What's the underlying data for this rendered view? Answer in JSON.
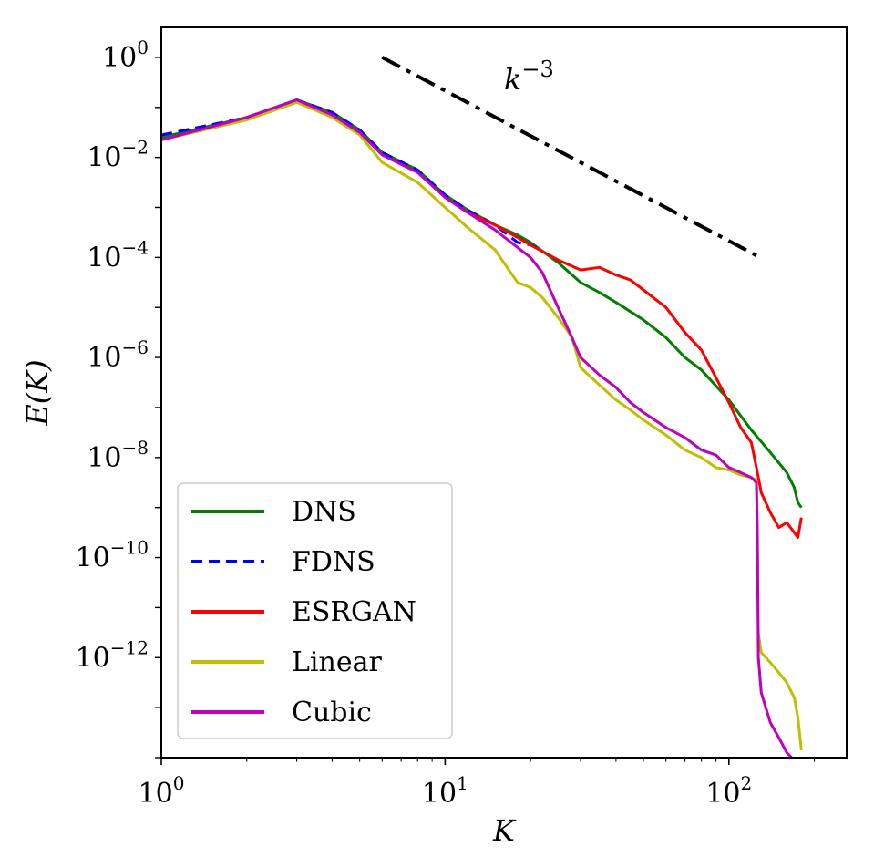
{
  "chart_data": {
    "type": "line",
    "title": "",
    "xlabel": "K",
    "ylabel": "E(K)",
    "xscale": "log",
    "yscale": "log",
    "xlim": [
      1,
      260
    ],
    "ylim_exponent": [
      -14,
      0.6
    ],
    "grid": false,
    "legend_position": "lower-left",
    "x_ticks": [
      {
        "base": "10",
        "exp": "0",
        "value": 1
      },
      {
        "base": "10",
        "exp": "1",
        "value": 10
      },
      {
        "base": "10",
        "exp": "2",
        "value": 100
      }
    ],
    "y_ticks": [
      {
        "base": "10",
        "exp": "0",
        "value_exp": 0
      },
      {
        "base": "10",
        "exp": "−2",
        "value_exp": -2
      },
      {
        "base": "10",
        "exp": "−4",
        "value_exp": -4
      },
      {
        "base": "10",
        "exp": "−6",
        "value_exp": -6
      },
      {
        "base": "10",
        "exp": "−8",
        "value_exp": -8
      },
      {
        "base": "10",
        "exp": "−10",
        "value_exp": -10
      },
      {
        "base": "10",
        "exp": "−12",
        "value_exp": -12
      }
    ],
    "annotation": {
      "base": "k",
      "exp": "−3",
      "line": {
        "x": [
          6,
          125
        ],
        "y_exp": [
          0,
          -3.96
        ]
      },
      "color": "#000000",
      "style": "dashdot"
    },
    "series": [
      {
        "name": "DNS",
        "color": "#008000",
        "style": "solid",
        "x": [
          1,
          2,
          3,
          4,
          5,
          6,
          8,
          10,
          12,
          15,
          18,
          20,
          25,
          30,
          35,
          40,
          50,
          60,
          70,
          80,
          100,
          120,
          140,
          160,
          170,
          175,
          180
        ],
        "y_exp": [
          -1.6,
          -1.2,
          -0.85,
          -1.1,
          -1.45,
          -1.9,
          -2.25,
          -2.75,
          -3.05,
          -3.35,
          -3.55,
          -3.7,
          -4.1,
          -4.5,
          -4.7,
          -4.9,
          -5.25,
          -5.6,
          -6.0,
          -6.25,
          -6.85,
          -7.45,
          -7.9,
          -8.3,
          -8.6,
          -8.9,
          -9.0
        ]
      },
      {
        "name": "FDNS",
        "color": "#0000ff",
        "style": "dashed",
        "x": [
          1,
          2,
          3,
          4,
          5,
          6,
          8,
          10,
          12,
          15,
          18,
          20,
          21
        ],
        "y_exp": [
          -1.55,
          -1.2,
          -0.85,
          -1.1,
          -1.45,
          -1.9,
          -2.25,
          -2.75,
          -3.05,
          -3.35,
          -3.7,
          -3.75,
          -3.8
        ]
      },
      {
        "name": "ESRGAN",
        "color": "#ff0000",
        "style": "solid",
        "x": [
          10,
          12,
          15,
          18,
          20,
          25,
          30,
          35,
          40,
          45,
          50,
          60,
          70,
          80,
          90,
          100,
          110,
          120,
          125,
          130,
          140,
          150,
          160,
          170,
          175,
          180
        ],
        "y_exp": [
          -2.8,
          -3.1,
          -3.35,
          -3.6,
          -3.75,
          -4.05,
          -4.25,
          -4.2,
          -4.35,
          -4.45,
          -4.65,
          -5.0,
          -5.5,
          -5.85,
          -6.4,
          -6.9,
          -7.4,
          -7.7,
          -8.2,
          -8.7,
          -9.1,
          -9.4,
          -9.3,
          -9.5,
          -9.6,
          -9.2
        ]
      },
      {
        "name": "Linear",
        "color": "#bfbf00",
        "style": "solid",
        "x": [
          1,
          2,
          3,
          4,
          5,
          6,
          8,
          10,
          12,
          15,
          18,
          20,
          22,
          25,
          28,
          30,
          35,
          40,
          45,
          50,
          60,
          70,
          80,
          90,
          100,
          110,
          120,
          125,
          126,
          127,
          130,
          140,
          150,
          160,
          170,
          175,
          180
        ],
        "y_exp": [
          -1.65,
          -1.25,
          -0.9,
          -1.2,
          -1.55,
          -2.1,
          -2.5,
          -3.0,
          -3.4,
          -3.85,
          -4.5,
          -4.6,
          -4.8,
          -5.2,
          -5.6,
          -6.2,
          -6.55,
          -6.85,
          -7.05,
          -7.25,
          -7.55,
          -7.85,
          -8.0,
          -8.2,
          -8.25,
          -8.35,
          -8.4,
          -8.45,
          -9.5,
          -11.5,
          -11.9,
          -12.1,
          -12.3,
          -12.5,
          -12.8,
          -13.2,
          -13.85
        ]
      },
      {
        "name": "Cubic",
        "color": "#bf00bf",
        "style": "solid",
        "x": [
          1,
          2,
          3,
          4,
          5,
          6,
          8,
          10,
          12,
          15,
          18,
          20,
          22,
          25,
          28,
          30,
          35,
          40,
          45,
          50,
          60,
          70,
          80,
          90,
          100,
          110,
          120,
          125,
          126,
          127,
          130,
          140,
          150,
          160,
          170,
          175,
          180
        ],
        "y_exp": [
          -1.65,
          -1.2,
          -0.85,
          -1.15,
          -1.5,
          -1.95,
          -2.3,
          -2.8,
          -3.1,
          -3.45,
          -3.8,
          -4.0,
          -4.3,
          -5.0,
          -5.6,
          -6.0,
          -6.35,
          -6.6,
          -6.9,
          -7.1,
          -7.4,
          -7.6,
          -7.85,
          -7.95,
          -8.2,
          -8.3,
          -8.4,
          -8.5,
          -9.5,
          -12.0,
          -12.7,
          -13.3,
          -13.6,
          -13.9,
          -14.05,
          -14.05,
          -14.05
        ]
      }
    ]
  }
}
